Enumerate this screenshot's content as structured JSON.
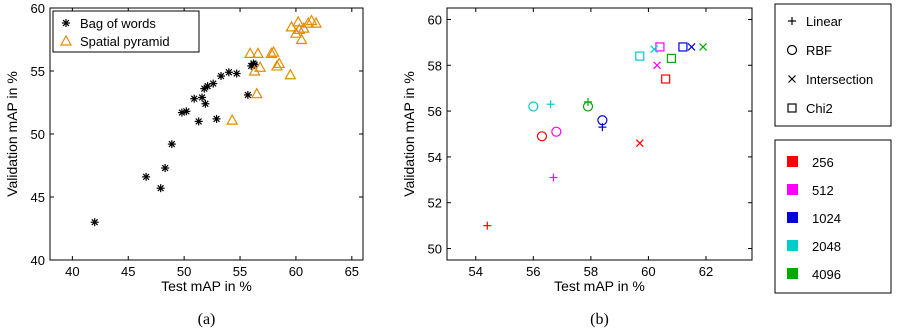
{
  "chart_data": [
    {
      "type": "scatter",
      "caption": "(a)",
      "xlabel": "Test mAP in %",
      "ylabel": "Validation mAP in %",
      "xlim": [
        38,
        66
      ],
      "ylim": [
        40,
        60
      ],
      "xticks": [
        40,
        45,
        50,
        55,
        60,
        65
      ],
      "yticks": [
        40,
        45,
        50,
        55,
        60
      ],
      "legend_position": "top-left",
      "series": [
        {
          "name": "Bag of words",
          "marker": "asterisk",
          "color": "#000000",
          "points": [
            [
              42.0,
              43.0
            ],
            [
              46.6,
              46.6
            ],
            [
              47.9,
              45.7
            ],
            [
              48.3,
              47.3
            ],
            [
              48.9,
              49.2
            ],
            [
              49.8,
              51.7
            ],
            [
              50.2,
              51.8
            ],
            [
              50.9,
              52.8
            ],
            [
              51.3,
              51.0
            ],
            [
              51.6,
              52.9
            ],
            [
              51.8,
              53.6
            ],
            [
              51.9,
              52.4
            ],
            [
              52.1,
              53.8
            ],
            [
              52.6,
              54.0
            ],
            [
              52.9,
              51.2
            ],
            [
              53.3,
              54.6
            ],
            [
              54.0,
              54.9
            ],
            [
              54.7,
              54.8
            ],
            [
              55.7,
              53.1
            ],
            [
              56.0,
              55.4
            ],
            [
              56.2,
              55.6
            ],
            [
              56.3,
              55.5
            ]
          ]
        },
        {
          "name": "Spatial pyramid",
          "marker": "triangle",
          "color": "#E68A00",
          "points": [
            [
              54.3,
              51.1
            ],
            [
              55.9,
              56.4
            ],
            [
              56.3,
              55.0
            ],
            [
              56.5,
              53.2
            ],
            [
              56.6,
              56.4
            ],
            [
              56.8,
              55.3
            ],
            [
              57.8,
              56.4
            ],
            [
              58.0,
              56.5
            ],
            [
              58.3,
              55.4
            ],
            [
              58.5,
              55.6
            ],
            [
              59.5,
              54.7
            ],
            [
              59.6,
              58.5
            ],
            [
              60.0,
              58.0
            ],
            [
              60.2,
              58.9
            ],
            [
              60.3,
              58.3
            ],
            [
              60.5,
              57.5
            ],
            [
              60.7,
              58.4
            ],
            [
              61.1,
              58.8
            ],
            [
              61.4,
              59.0
            ],
            [
              61.8,
              58.8
            ]
          ]
        }
      ]
    },
    {
      "type": "scatter",
      "caption": "(b)",
      "xlabel": "Test mAP in %",
      "ylabel": "Validation mAP in %",
      "xlim": [
        53,
        63.6
      ],
      "ylim": [
        49.5,
        60.5
      ],
      "xticks": [
        54,
        56,
        58,
        60,
        62
      ],
      "yticks": [
        50,
        52,
        54,
        56,
        58,
        60
      ],
      "marker_legend": [
        {
          "label": "Linear",
          "marker": "plus"
        },
        {
          "label": "RBF",
          "marker": "circle"
        },
        {
          "label": "Intersection",
          "marker": "cross"
        },
        {
          "label": "Chi2",
          "marker": "square"
        }
      ],
      "color_legend": [
        {
          "label": "256",
          "color": "#FF0000"
        },
        {
          "label": "512",
          "color": "#FF00FF"
        },
        {
          "label": "1024",
          "color": "#0000DD"
        },
        {
          "label": "2048",
          "color": "#00CCCC"
        },
        {
          "label": "4096",
          "color": "#00AA00"
        }
      ],
      "points": [
        {
          "x": 54.4,
          "y": 51.0,
          "marker": "plus",
          "color": "#FF0000"
        },
        {
          "x": 56.3,
          "y": 54.9,
          "marker": "circle",
          "color": "#FF0000"
        },
        {
          "x": 59.7,
          "y": 54.6,
          "marker": "cross",
          "color": "#FF0000"
        },
        {
          "x": 60.6,
          "y": 57.4,
          "marker": "square",
          "color": "#FF0000"
        },
        {
          "x": 56.7,
          "y": 53.1,
          "marker": "plus",
          "color": "#FF00FF"
        },
        {
          "x": 56.8,
          "y": 55.1,
          "marker": "circle",
          "color": "#FF00FF"
        },
        {
          "x": 60.3,
          "y": 58.0,
          "marker": "cross",
          "color": "#FF00FF"
        },
        {
          "x": 60.4,
          "y": 58.8,
          "marker": "square",
          "color": "#FF00FF"
        },
        {
          "x": 58.4,
          "y": 55.3,
          "marker": "plus",
          "color": "#0000DD"
        },
        {
          "x": 58.4,
          "y": 55.6,
          "marker": "circle",
          "color": "#0000DD"
        },
        {
          "x": 61.5,
          "y": 58.8,
          "marker": "cross",
          "color": "#0000DD"
        },
        {
          "x": 61.2,
          "y": 58.8,
          "marker": "square",
          "color": "#0000DD"
        },
        {
          "x": 56.6,
          "y": 56.3,
          "marker": "plus",
          "color": "#00CCCC"
        },
        {
          "x": 56.0,
          "y": 56.2,
          "marker": "circle",
          "color": "#00CCCC"
        },
        {
          "x": 60.2,
          "y": 58.7,
          "marker": "cross",
          "color": "#00CCCC"
        },
        {
          "x": 59.7,
          "y": 58.4,
          "marker": "square",
          "color": "#00CCCC"
        },
        {
          "x": 57.9,
          "y": 56.4,
          "marker": "plus",
          "color": "#00AA00"
        },
        {
          "x": 57.9,
          "y": 56.2,
          "marker": "circle",
          "color": "#00AA00"
        },
        {
          "x": 61.9,
          "y": 58.8,
          "marker": "cross",
          "color": "#00AA00"
        },
        {
          "x": 60.8,
          "y": 58.3,
          "marker": "square",
          "color": "#00AA00"
        }
      ]
    }
  ]
}
